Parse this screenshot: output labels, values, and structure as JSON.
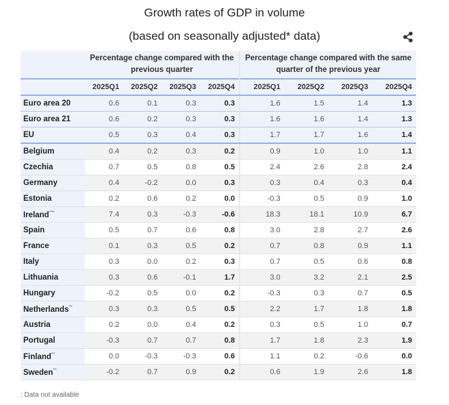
{
  "title": "Growth rates of GDP in volume",
  "subtitle": "(based on seasonally adjusted* data)",
  "share_icon": "share-icon",
  "table": {
    "group_headers": [
      "Percentage change compared with the previous quarter",
      "Percentage change compared with the same quarter of the previous year"
    ],
    "quarters": [
      "2025Q1",
      "2025Q2",
      "2025Q3",
      "2025Q4",
      "2025Q1",
      "2025Q2",
      "2025Q3",
      "2025Q4"
    ],
    "rows": [
      {
        "name": "Euro area 20",
        "sup": "",
        "values": [
          "0.6",
          "0.1",
          "0.3",
          "0.3",
          "1.6",
          "1.5",
          "1.4",
          "1.3"
        ]
      },
      {
        "name": "Euro area 21",
        "sup": "",
        "values": [
          "0.6",
          "0.2",
          "0.3",
          "0.3",
          "1.6",
          "1.6",
          "1.4",
          "1.3"
        ]
      },
      {
        "name": "EU",
        "sup": "",
        "values": [
          "0.5",
          "0.3",
          "0.4",
          "0.3",
          "1.7",
          "1.7",
          "1.6",
          "1.4"
        ]
      },
      {
        "name": "Belgium",
        "sup": "",
        "values": [
          "0.4",
          "0.2",
          "0.3",
          "0.2",
          "0.9",
          "1.0",
          "1.0",
          "1.1"
        ]
      },
      {
        "name": "Czechia",
        "sup": "",
        "values": [
          "0.7",
          "0.5",
          "0.8",
          "0.5",
          "2.4",
          "2.6",
          "2.8",
          "2.4"
        ]
      },
      {
        "name": "Germany",
        "sup": "",
        "values": [
          "0.4",
          "-0.2",
          "0.0",
          "0.3",
          "0.3",
          "0.4",
          "0.3",
          "0.4"
        ]
      },
      {
        "name": "Estonia",
        "sup": "",
        "values": [
          "0.2",
          "0.6",
          "0.2",
          "0.0",
          "-0.3",
          "0.5",
          "0.9",
          "1.0"
        ]
      },
      {
        "name": "Ireland",
        "sup": "***",
        "values": [
          "7.4",
          "0.3",
          "-0.3",
          "-0.6",
          "18.3",
          "18.1",
          "10.9",
          "6.7"
        ]
      },
      {
        "name": "Spain",
        "sup": "",
        "values": [
          "0.5",
          "0.7",
          "0.6",
          "0.8",
          "3.0",
          "2.8",
          "2.7",
          "2.6"
        ]
      },
      {
        "name": "France",
        "sup": "",
        "values": [
          "0.1",
          "0.3",
          "0.5",
          "0.2",
          "0.7",
          "0.8",
          "0.9",
          "1.1"
        ]
      },
      {
        "name": "Italy",
        "sup": "",
        "values": [
          "0.3",
          "0.0",
          "0.2",
          "0.3",
          "0.7",
          "0.5",
          "0.6",
          "0.8"
        ]
      },
      {
        "name": "Lithuania",
        "sup": "",
        "values": [
          "0.3",
          "0.6",
          "-0.1",
          "1.7",
          "3.0",
          "3.2",
          "2.1",
          "2.5"
        ]
      },
      {
        "name": "Hungary",
        "sup": "",
        "values": [
          "-0.2",
          "0.5",
          "0.0",
          "0.2",
          "-0.3",
          "0.3",
          "0.7",
          "0.5"
        ]
      },
      {
        "name": "Netherlands",
        "sup": "**",
        "values": [
          "0.3",
          "0.3",
          "0.5",
          "0.5",
          "2.2",
          "1.7",
          "1.8",
          "1.8"
        ]
      },
      {
        "name": "Austria",
        "sup": "",
        "values": [
          "0.2",
          "0.0",
          "0.4",
          "0.2",
          "0.3",
          "0.5",
          "1.0",
          "0.7"
        ]
      },
      {
        "name": "Portugal",
        "sup": "",
        "values": [
          "-0.3",
          "0.7",
          "0.7",
          "0.8",
          "1.7",
          "1.8",
          "2.3",
          "1.9"
        ]
      },
      {
        "name": "Finland",
        "sup": "**",
        "values": [
          "0.0",
          "-0.3",
          "-0.3",
          "0.6",
          "1.1",
          "0.2",
          "-0.6",
          "0.0"
        ]
      },
      {
        "name": "Sweden",
        "sup": "**",
        "values": [
          "-0.2",
          "0.7",
          "0.9",
          "0.2",
          "0.6",
          "1.9",
          "2.6",
          "1.8"
        ]
      }
    ]
  },
  "footnote": ": Data not available"
}
